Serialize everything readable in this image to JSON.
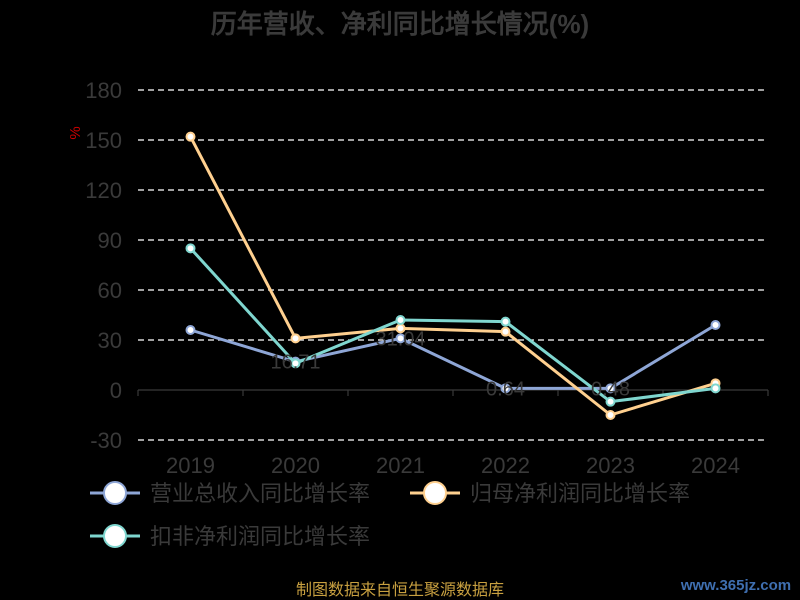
{
  "chart_data": {
    "type": "line",
    "title": "历年营收、净利同比增长情况(%)",
    "ylabel": "%",
    "categories": [
      "2019",
      "2020",
      "2021",
      "2022",
      "2023",
      "2024"
    ],
    "ylim": [
      -30,
      180
    ],
    "yticks": [
      180,
      150,
      120,
      90,
      60,
      30,
      0,
      -30
    ],
    "grid": true,
    "legend_position": "bottom",
    "series": [
      {
        "name": "营业总收入同比增长率",
        "color": "#8ea6d6",
        "values": [
          36,
          17,
          31,
          1,
          1,
          39
        ],
        "labels": [
          "",
          "16.71",
          "31.04",
          "0.64",
          "0.48",
          ""
        ]
      },
      {
        "name": "归母净利润同比增长率",
        "color": "#ffd08f",
        "values": [
          152,
          31,
          37,
          35,
          -15,
          4
        ],
        "labels": [
          "",
          "",
          "",
          "",
          "",
          ""
        ]
      },
      {
        "name": "扣非净利润同比增长率",
        "color": "#7fd6cf",
        "values": [
          85,
          16,
          42,
          41,
          -7,
          1
        ],
        "labels": [
          "",
          "",
          "",
          "",
          "",
          ""
        ]
      }
    ]
  },
  "footer": {
    "source": "制图数据来自恒生聚源数据库",
    "watermark": "www.365jz.com"
  }
}
